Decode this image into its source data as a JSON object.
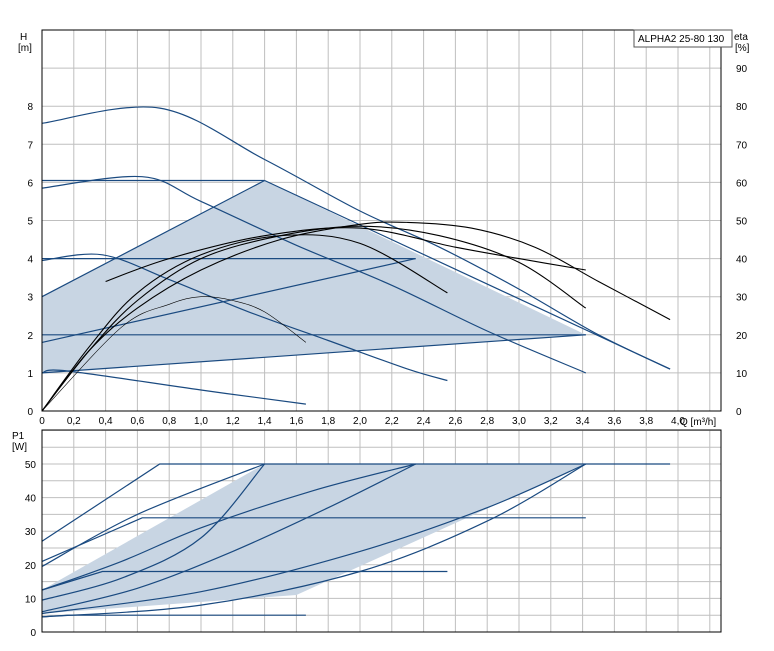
{
  "chart_data": [
    {
      "type": "line",
      "legend_placement": "top-right",
      "legend_label": "ALPHA2 25-80 130",
      "y_label_line1": "H",
      "y_label_line2": "[m]",
      "y2_label_line1": "eta",
      "y2_label_line2": "[%]",
      "x_label": "Q [m³/h]",
      "xlim": [
        0,
        4.5
      ],
      "ylim": [
        0,
        10
      ],
      "y2lim": [
        0,
        100
      ],
      "grid": true,
      "x_ticks": [
        "0",
        "0,2",
        "0,4",
        "0,6",
        "0,8",
        "1,0",
        "1,2",
        "1,4",
        "1,6",
        "1,8",
        "2,0",
        "2,2",
        "2,4",
        "2,6",
        "2,8",
        "3,0",
        "3,2",
        "3,4",
        "3,6",
        "3,8",
        "4,0"
      ],
      "y_ticks": [
        "0",
        "1",
        "2",
        "3",
        "4",
        "5",
        "6",
        "7",
        "8"
      ],
      "y2_ticks": [
        "0",
        "10",
        "20",
        "30",
        "40",
        "50",
        "60",
        "70",
        "80",
        "90"
      ],
      "operating_region": [
        [
          0,
          3.0
        ],
        [
          1.4,
          6.05
        ],
        [
          3.42,
          2.0
        ],
        [
          0,
          1.0
        ]
      ],
      "series": [
        {
          "kind": "pump",
          "x": [
            0,
            0.74,
            1.4,
            2.0,
            2.5,
            3.0,
            3.5,
            3.95
          ],
          "y": [
            7.55,
            7.95,
            6.6,
            5.25,
            4.3,
            3.2,
            2.0,
            1.1
          ]
        },
        {
          "kind": "pump",
          "x": [
            0,
            0.63,
            1.0,
            1.6,
            2.2,
            2.8,
            3.42
          ],
          "y": [
            5.85,
            6.15,
            5.5,
            4.35,
            3.3,
            2.1,
            1.0
          ]
        },
        {
          "kind": "pump",
          "x": [
            0,
            0.38,
            0.8,
            1.3,
            1.8,
            2.3,
            2.55
          ],
          "y": [
            3.95,
            4.1,
            3.45,
            2.6,
            1.85,
            1.1,
            0.8
          ]
        },
        {
          "kind": "pump",
          "x": [
            0,
            0.16,
            1.0,
            1.66
          ],
          "y": [
            1.0,
            1.05,
            0.55,
            0.18
          ]
        },
        {
          "kind": "pump",
          "x": [
            0,
            1.4
          ],
          "y": [
            6.05,
            6.05
          ]
        },
        {
          "kind": "pump",
          "x": [
            0,
            2.35
          ],
          "y": [
            4.0,
            4.0
          ]
        },
        {
          "kind": "pump",
          "x": [
            0,
            3.42
          ],
          "y": [
            2.0,
            2.0
          ]
        },
        {
          "kind": "pump",
          "x": [
            0,
            3.42
          ],
          "y": [
            1.0,
            2.0
          ]
        },
        {
          "kind": "pump",
          "x": [
            0,
            2.35
          ],
          "y": [
            1.8,
            4.0
          ]
        },
        {
          "kind": "pump",
          "x": [
            0,
            1.4
          ],
          "y": [
            3.0,
            6.05
          ]
        },
        {
          "kind": "pump",
          "x": [
            1.4,
            3.95
          ],
          "y": [
            6.05,
            1.1
          ]
        },
        {
          "kind": "eff",
          "x": [
            0,
            0.3,
            0.6,
            1.0,
            1.5,
            2.0,
            2.3,
            2.7,
            3.1,
            3.5,
            3.95
          ],
          "y": [
            0,
            16,
            27,
            37,
            45,
            49,
            49.5,
            48,
            43,
            34,
            24
          ]
        },
        {
          "kind": "eff",
          "x": [
            0,
            0.3,
            0.6,
            1.0,
            1.5,
            2.0,
            2.5,
            3.0,
            3.42
          ],
          "y": [
            0,
            16,
            29,
            40,
            46,
            48.5,
            46,
            39,
            27
          ]
        },
        {
          "kind": "eff",
          "x": [
            0,
            0.3,
            0.6,
            1.0,
            1.5,
            2.0,
            2.55
          ],
          "y": [
            0,
            17,
            31,
            41,
            46,
            44,
            31
          ]
        },
        {
          "kind": "eff",
          "x": [
            0,
            0.5,
            0.8,
            1.0,
            1.2,
            1.4,
            1.66
          ],
          "y": [
            0,
            22,
            28,
            30,
            29,
            26,
            18
          ]
        },
        {
          "kind": "eff",
          "x": [
            0.4,
            0.8,
            1.4,
            2.0,
            2.6,
            3.0,
            3.42
          ],
          "y": [
            34,
            40,
            46,
            48,
            43,
            40,
            37
          ]
        }
      ]
    },
    {
      "type": "line",
      "y_label_line1": "P1",
      "y_label_line2": "[W]",
      "xlim": [
        0,
        4.5
      ],
      "ylim": [
        0,
        55
      ],
      "grid": true,
      "y_ticks": [
        "0",
        "10",
        "20",
        "30",
        "40",
        "50"
      ],
      "operating_region": [
        [
          0,
          5.5
        ],
        [
          0,
          12.5
        ],
        [
          1.4,
          50
        ],
        [
          3.42,
          50
        ],
        [
          1.6,
          11
        ],
        [
          0,
          5.5
        ]
      ],
      "series": [
        {
          "kind": "pump",
          "x": [
            0,
            0.74,
            3.95
          ],
          "y": [
            27,
            50,
            50
          ]
        },
        {
          "kind": "pump",
          "x": [
            0,
            0.63,
            3.42
          ],
          "y": [
            21,
            34,
            34
          ]
        },
        {
          "kind": "pump",
          "x": [
            0,
            0.38,
            2.55
          ],
          "y": [
            12.5,
            18,
            18
          ]
        },
        {
          "kind": "pump",
          "x": [
            0,
            0.16,
            1.66
          ],
          "y": [
            4.5,
            5,
            5
          ]
        },
        {
          "kind": "pump",
          "x": [
            0,
            0.5,
            1.0,
            1.4
          ],
          "y": [
            9.5,
            16,
            28,
            50
          ]
        },
        {
          "kind": "pump",
          "x": [
            0,
            0.6,
            1.2,
            1.8,
            2.35
          ],
          "y": [
            6,
            13,
            24,
            37,
            50
          ]
        },
        {
          "kind": "pump",
          "x": [
            0,
            1.0,
            2.0,
            2.8,
            3.42
          ],
          "y": [
            5.5,
            12,
            24,
            37,
            50
          ]
        },
        {
          "kind": "pump",
          "x": [
            0,
            1.0,
            2.0,
            2.8,
            3.42
          ],
          "y": [
            4.5,
            8,
            18,
            33,
            50
          ]
        },
        {
          "kind": "pump",
          "x": [
            0,
            0.6,
            1.4
          ],
          "y": [
            19.5,
            35,
            50
          ]
        },
        {
          "kind": "pump",
          "x": [
            0,
            0.5,
            1.0,
            1.7,
            2.35
          ],
          "y": [
            12.5,
            21,
            31,
            42,
            50
          ]
        }
      ]
    }
  ]
}
